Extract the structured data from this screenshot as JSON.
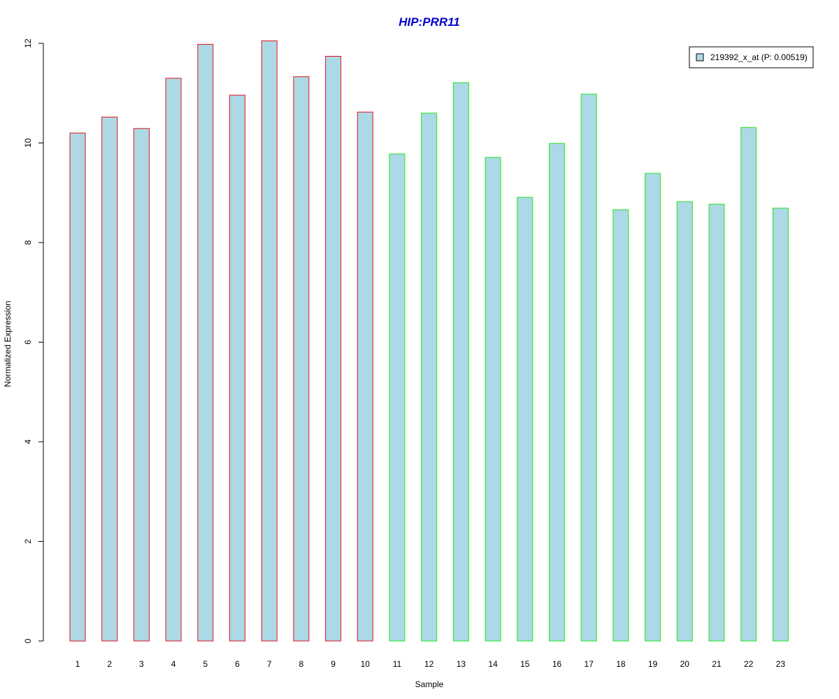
{
  "chart_data": {
    "type": "bar",
    "title": "HIP:PRR11",
    "xlabel": "Sample",
    "ylabel": "Normalized Expression",
    "categories": [
      "1",
      "2",
      "3",
      "4",
      "5",
      "6",
      "7",
      "8",
      "9",
      "10",
      "11",
      "12",
      "13",
      "14",
      "15",
      "16",
      "17",
      "18",
      "19",
      "20",
      "21",
      "22",
      "23"
    ],
    "series": [
      {
        "name": "219392_x_at (P: 0.00519)",
        "values": [
          10.2,
          10.52,
          10.29,
          11.3,
          11.98,
          10.96,
          12.05,
          11.33,
          11.74,
          10.62,
          9.78,
          10.6,
          11.21,
          9.71,
          8.91,
          9.99,
          10.98,
          8.66,
          9.39,
          8.82,
          8.77,
          10.31,
          8.69
        ]
      }
    ],
    "group_border_colors": [
      "#e0141a",
      "#e0141a",
      "#e0141a",
      "#e0141a",
      "#e0141a",
      "#e0141a",
      "#e0141a",
      "#e0141a",
      "#e0141a",
      "#e0141a",
      "#1ee81e",
      "#1ee81e",
      "#1ee81e",
      "#1ee81e",
      "#1ee81e",
      "#1ee81e",
      "#1ee81e",
      "#1ee81e",
      "#1ee81e",
      "#1ee81e",
      "#1ee81e",
      "#1ee81e",
      "#1ee81e"
    ],
    "yticks": [
      0,
      2,
      4,
      6,
      8,
      10,
      12
    ],
    "ylim": [
      0,
      12
    ],
    "grid": false,
    "legend_position": "top-right",
    "colors": {
      "bar_fill": "#add8e6",
      "title": "#0000cc",
      "axis": "#000000",
      "legend_border": "#000000"
    }
  }
}
